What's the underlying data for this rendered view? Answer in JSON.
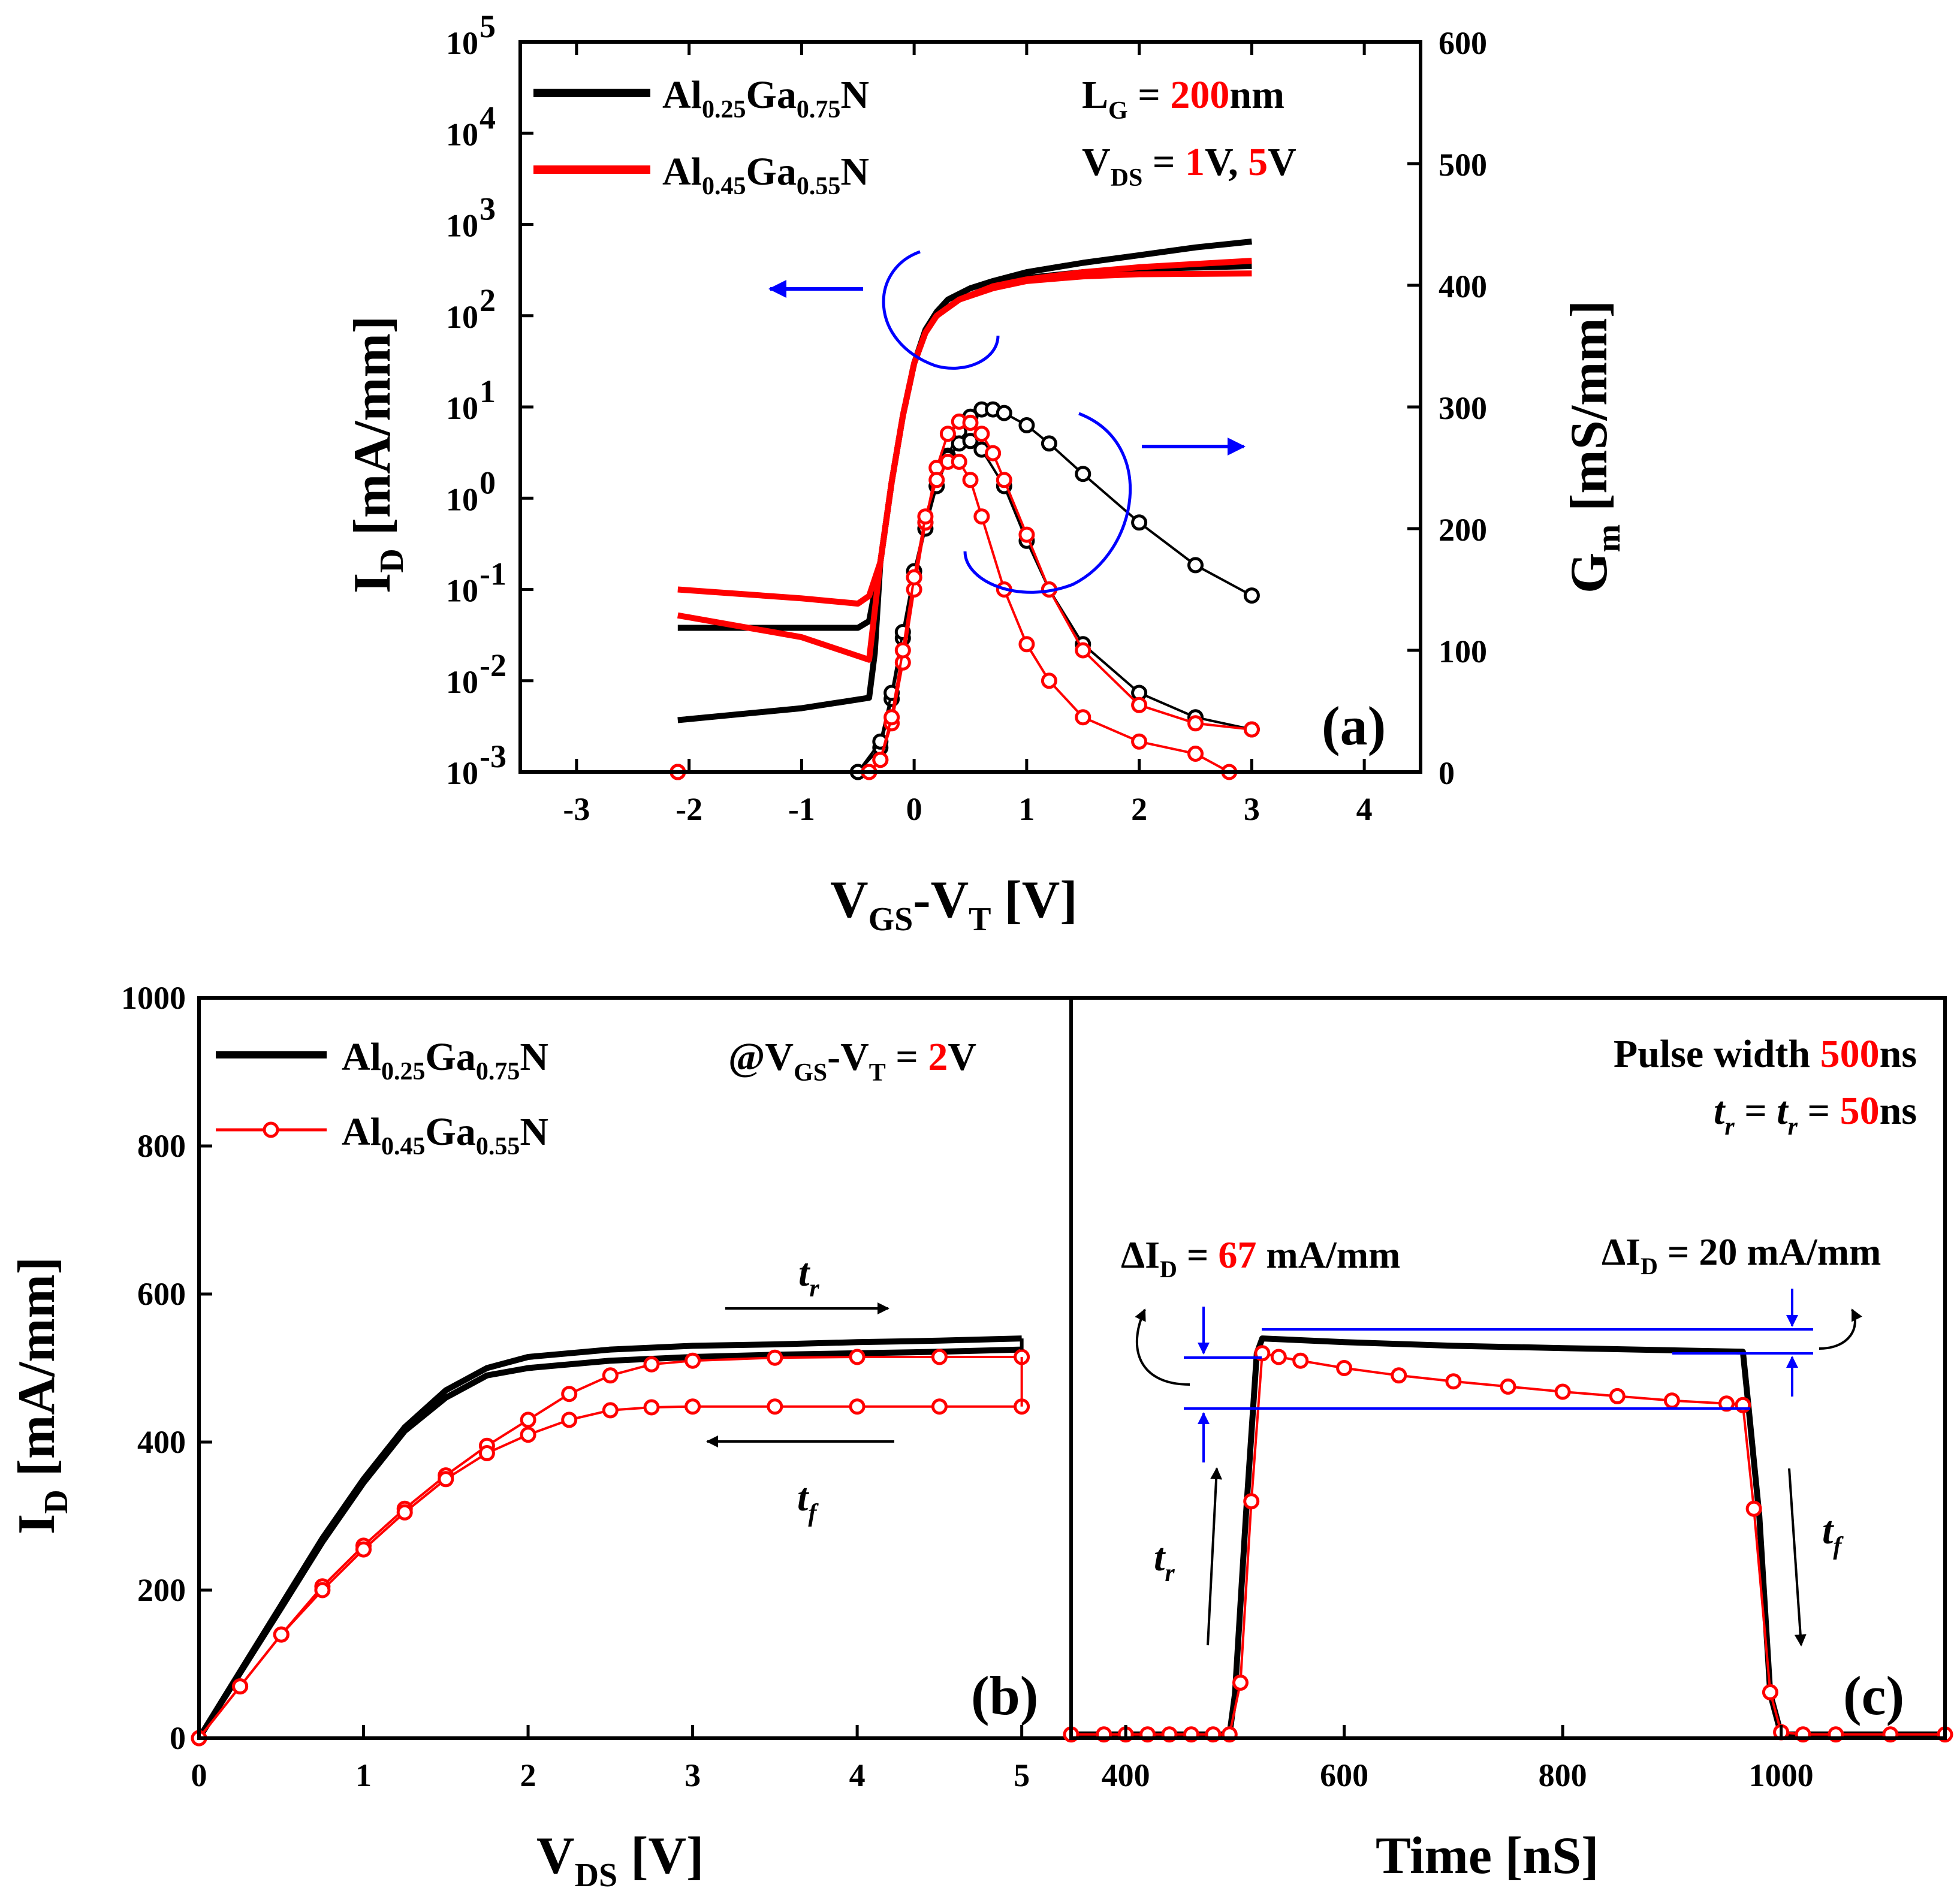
{
  "colors": {
    "black": "#000000",
    "red": "#ff0000",
    "blue": "#0000ff"
  },
  "chart_data": [
    {
      "panel": "a",
      "type": "line",
      "panel_label": "(a)",
      "xlabel": "VGS-VT [V]",
      "xlabel_main": "V",
      "xlabel_sub1": "GS",
      "xlabel_mid": "-V",
      "xlabel_sub2": "T",
      "xlabel_unit": " [V]",
      "ylabel": "ID [mA/mm]",
      "ylabel_main": "I",
      "ylabel_sub": "D",
      "ylabel_unit": " [mA/mm]",
      "y2label": "Gm [mS/mm]",
      "y2label_main": "G",
      "y2label_sub": "m",
      "y2label_unit": " [mS/mm]",
      "xlim": [
        -3.5,
        4.5
      ],
      "ylim_log10": [
        -3,
        5
      ],
      "y2lim": [
        0,
        600
      ],
      "yscale": "log",
      "xticks": [
        "-3",
        "-2",
        "-1",
        "0",
        "1",
        "2",
        "3",
        "4"
      ],
      "yticks": [
        {
          "base": "10",
          "exp": "-3"
        },
        {
          "base": "10",
          "exp": "-2"
        },
        {
          "base": "10",
          "exp": "-1"
        },
        {
          "base": "10",
          "exp": "0"
        },
        {
          "base": "10",
          "exp": "1"
        },
        {
          "base": "10",
          "exp": "2"
        },
        {
          "base": "10",
          "exp": "3"
        },
        {
          "base": "10",
          "exp": "4"
        },
        {
          "base": "10",
          "exp": "5"
        }
      ],
      "y2ticks": [
        "0",
        "100",
        "200",
        "300",
        "400",
        "500",
        "600"
      ],
      "legend": [
        {
          "main": "Al",
          "sub1": "0.25",
          "mid": "Ga",
          "sub2": "0.75",
          "end": "N",
          "color": "#000000"
        },
        {
          "main": "Al",
          "sub1": "0.45",
          "mid": "Ga",
          "sub2": "0.55",
          "end": "N",
          "color": "#ff0000"
        }
      ],
      "annotation": {
        "lg_main": "L",
        "lg_sub": "G",
        "lg_eq": " = ",
        "lg_val": "200",
        "lg_unit": "nm",
        "vds_main": "V",
        "vds_sub": "DS",
        "vds_eq": " = ",
        "vds_val1": "1",
        "vds_mid": "V, ",
        "vds_val2": "5",
        "vds_unit": "V"
      },
      "series": [
        {
          "name": "Al0.25Ga0.75N ID VDS=5V",
          "axis": "left",
          "color": "#000000",
          "style": "line",
          "x": [
            -2.1,
            -0.5,
            -0.4,
            -0.3,
            -0.2,
            -0.1,
            0,
            0.1,
            0.2,
            0.3,
            0.5,
            0.7,
            1,
            1.5,
            2,
            2.5,
            3
          ],
          "y": [
            0.038,
            0.038,
            0.045,
            0.2,
            1.5,
            8,
            30,
            70,
            110,
            150,
            200,
            240,
            300,
            380,
            460,
            560,
            650
          ]
        },
        {
          "name": "Al0.25Ga0.75N ID VDS=1V",
          "axis": "left",
          "color": "#000000",
          "style": "line",
          "x": [
            -2.1,
            -1,
            -0.4,
            -0.35,
            -0.3,
            -0.2,
            -0.1,
            0,
            0.1,
            0.2,
            0.4,
            0.7,
            1,
            1.5,
            2,
            3
          ],
          "y": [
            0.0037,
            0.005,
            0.0065,
            0.02,
            0.2,
            1.5,
            8,
            30,
            65,
            100,
            150,
            210,
            260,
            300,
            325,
            350
          ]
        },
        {
          "name": "Al0.45Ga0.55N ID VDS=5V",
          "axis": "left",
          "color": "#ff0000",
          "style": "line",
          "x": [
            -2.1,
            -1,
            -0.5,
            -0.4,
            -0.3,
            -0.2,
            -0.1,
            0,
            0.1,
            0.2,
            0.4,
            0.7,
            1,
            1.5,
            2,
            3
          ],
          "y": [
            0.1,
            0.08,
            0.07,
            0.085,
            0.2,
            1.5,
            8,
            30,
            65,
            100,
            150,
            210,
            250,
            300,
            340,
            400
          ]
        },
        {
          "name": "Al0.45Ga0.55N ID VDS=1V",
          "axis": "left",
          "color": "#ff0000",
          "style": "line",
          "x": [
            -2.1,
            -1,
            -0.4,
            -0.3,
            -0.2,
            -0.1,
            0,
            0.1,
            0.2,
            0.4,
            0.7,
            1,
            1.5,
            2,
            3
          ],
          "y": [
            0.052,
            0.03,
            0.017,
            0.2,
            1.5,
            8,
            30,
            65,
            100,
            150,
            200,
            240,
            270,
            285,
            290
          ]
        },
        {
          "name": "Al0.25Ga0.75N Gm VDS=5V",
          "axis": "right",
          "color": "#000000",
          "style": "marker",
          "x": [
            -2.1,
            -0.5,
            -0.3,
            -0.2,
            -0.1,
            0,
            0.1,
            0.2,
            0.3,
            0.4,
            0.5,
            0.6,
            0.7,
            0.8,
            1,
            1.2,
            1.5,
            2,
            2.5,
            3
          ],
          "y": [
            0,
            0,
            20,
            60,
            110,
            160,
            200,
            235,
            260,
            280,
            292,
            298,
            298,
            295,
            285,
            270,
            245,
            205,
            170,
            145
          ]
        },
        {
          "name": "Al0.25Ga0.75N Gm VDS=1V",
          "axis": "right",
          "color": "#000000",
          "style": "marker",
          "x": [
            -2.1,
            -0.5,
            -0.3,
            -0.2,
            -0.1,
            0,
            0.1,
            0.2,
            0.3,
            0.4,
            0.5,
            0.6,
            0.8,
            1,
            1.2,
            1.5,
            2,
            2.5,
            3
          ],
          "y": [
            0,
            0,
            25,
            65,
            115,
            165,
            205,
            235,
            258,
            270,
            272,
            265,
            235,
            190,
            150,
            105,
            65,
            45,
            35
          ]
        },
        {
          "name": "Al0.45Ga0.55N Gm VDS=5V",
          "axis": "right",
          "color": "#ff0000",
          "style": "marker",
          "x": [
            -2.1,
            -0.4,
            -0.3,
            -0.2,
            -0.1,
            0,
            0.1,
            0.2,
            0.3,
            0.4,
            0.5,
            0.6,
            0.7,
            0.8,
            1,
            1.2,
            1.5,
            2,
            2.5,
            3
          ],
          "y": [
            0,
            0,
            10,
            40,
            90,
            150,
            205,
            250,
            278,
            288,
            287,
            278,
            262,
            240,
            195,
            150,
            100,
            55,
            40,
            35
          ]
        },
        {
          "name": "Al0.45Ga0.55N Gm VDS=1V",
          "axis": "right",
          "color": "#ff0000",
          "style": "marker",
          "x": [
            -2.1,
            -0.4,
            -0.3,
            -0.2,
            -0.1,
            0,
            0.1,
            0.2,
            0.3,
            0.4,
            0.5,
            0.6,
            0.8,
            1,
            1.2,
            1.5,
            2,
            2.5,
            2.8
          ],
          "y": [
            0,
            0,
            10,
            45,
            100,
            160,
            210,
            240,
            255,
            255,
            240,
            210,
            150,
            105,
            75,
            45,
            25,
            15,
            0
          ]
        }
      ]
    },
    {
      "panel": "b",
      "type": "line",
      "panel_label": "(b)",
      "xlabel": "VDS [V]",
      "xlabel_main": "V",
      "xlabel_sub": "DS",
      "xlabel_unit": " [V]",
      "ylabel": "ID [mA/mm]",
      "ylabel_main": "I",
      "ylabel_sub": "D",
      "ylabel_unit": " [mA/mm]",
      "xlim": [
        0,
        5.3
      ],
      "ylim": [
        0,
        1000
      ],
      "xticks": [
        "0",
        "1",
        "2",
        "3",
        "4",
        "5"
      ],
      "yticks": [
        "0",
        "200",
        "400",
        "600",
        "800",
        "1000"
      ],
      "legend": [
        {
          "main": "Al",
          "sub1": "0.25",
          "mid": "Ga",
          "sub2": "0.75",
          "end": "N",
          "color": "#000000"
        },
        {
          "main": "Al",
          "sub1": "0.45",
          "mid": "Ga",
          "sub2": "0.55",
          "end": "N",
          "color": "#ff0000"
        }
      ],
      "annotation": {
        "at": "@V",
        "sub1": "GS",
        "mid": "-V",
        "sub2": "T",
        "eq": " = ",
        "val": "2",
        "unit": "V"
      },
      "arrow_labels": {
        "tr_main": "t",
        "tr_sub": "r",
        "tf_main": "t",
        "tf_sub": "f"
      },
      "series": [
        {
          "name": "Al0.25Ga0.75N rise",
          "color": "#000000",
          "style": "line",
          "x": [
            0,
            0.25,
            0.5,
            0.75,
            1,
            1.25,
            1.5,
            1.75,
            2,
            2.5,
            3,
            3.5,
            4,
            4.5,
            5
          ],
          "y": [
            0,
            90,
            180,
            270,
            350,
            420,
            470,
            500,
            515,
            525,
            530,
            532,
            535,
            537,
            540
          ]
        },
        {
          "name": "Al0.25Ga0.75N fall",
          "color": "#000000",
          "style": "line",
          "x": [
            0,
            0.25,
            0.5,
            0.75,
            1,
            1.25,
            1.5,
            1.75,
            2,
            2.5,
            3,
            3.5,
            4,
            4.5,
            5
          ],
          "y": [
            0,
            88,
            176,
            265,
            345,
            415,
            460,
            490,
            500,
            510,
            515,
            518,
            520,
            522,
            525
          ]
        },
        {
          "name": "Al0.45Ga0.55N rise",
          "color": "#ff0000",
          "style": "marker",
          "x": [
            0,
            0.25,
            0.5,
            0.75,
            1,
            1.25,
            1.5,
            1.75,
            2,
            2.25,
            2.5,
            2.75,
            3,
            3.5,
            4,
            4.5,
            5
          ],
          "y": [
            0,
            70,
            140,
            205,
            260,
            310,
            355,
            395,
            430,
            465,
            490,
            505,
            510,
            514,
            515,
            515,
            515
          ]
        },
        {
          "name": "Al0.45Ga0.55N fall",
          "color": "#ff0000",
          "style": "marker",
          "x": [
            0,
            0.25,
            0.5,
            0.75,
            1,
            1.25,
            1.5,
            1.75,
            2,
            2.25,
            2.5,
            2.75,
            3,
            3.5,
            4,
            4.5,
            5
          ],
          "y": [
            0,
            70,
            140,
            200,
            255,
            305,
            350,
            385,
            410,
            430,
            443,
            447,
            448,
            448,
            448,
            448,
            448
          ]
        }
      ]
    },
    {
      "panel": "c",
      "type": "line",
      "panel_label": "(c)",
      "xlabel": "Time [nS]",
      "xlim": [
        350,
        1150
      ],
      "ylim": [
        0,
        1000
      ],
      "xticks": [
        "400",
        "600",
        "800",
        "1000"
      ],
      "annotation": {
        "pw": "Pulse width ",
        "pw_val": "500",
        "pw_unit": "ns",
        "t1": "t",
        "t1_sub": "r",
        "eq": " = ",
        "t2": "t",
        "t2_sub": "r",
        "eq2": " = ",
        "tv": "50",
        "tv_unit": "ns"
      },
      "delta_left": {
        "main": "ΔI",
        "sub": "D",
        "eq": " = ",
        "val": "67",
        "unit": " mA/mm"
      },
      "delta_right": {
        "main": "ΔI",
        "sub": "D",
        "eq": " = 20 mA/mm"
      },
      "arrow_labels": {
        "tr_main": "t",
        "tr_sub": "r",
        "tf_main": "t",
        "tf_sub": "f"
      },
      "series": [
        {
          "name": "Al0.25Ga0.75N",
          "color": "#000000",
          "style": "line",
          "x": [
            350,
            495,
            500,
            510,
            520,
            525,
            600,
            700,
            800,
            900,
            965,
            970,
            980,
            990,
            1000,
            1150
          ],
          "y": [
            5,
            5,
            60,
            300,
            520,
            540,
            535,
            530,
            527,
            524,
            522,
            450,
            300,
            60,
            5,
            5
          ]
        },
        {
          "name": "Al0.45Ga0.55N",
          "color": "#ff0000",
          "style": "marker",
          "x": [
            350,
            380,
            400,
            420,
            440,
            460,
            480,
            495,
            505,
            515,
            525,
            540,
            560,
            600,
            650,
            700,
            750,
            800,
            850,
            900,
            950,
            965,
            975,
            990,
            1000,
            1020,
            1050,
            1100,
            1150
          ],
          "y": [
            5,
            5,
            5,
            5,
            5,
            5,
            5,
            5,
            75,
            320,
            520,
            515,
            510,
            500,
            490,
            482,
            475,
            468,
            462,
            456,
            452,
            450,
            310,
            62,
            8,
            5,
            5,
            5,
            5
          ]
        }
      ]
    }
  ]
}
